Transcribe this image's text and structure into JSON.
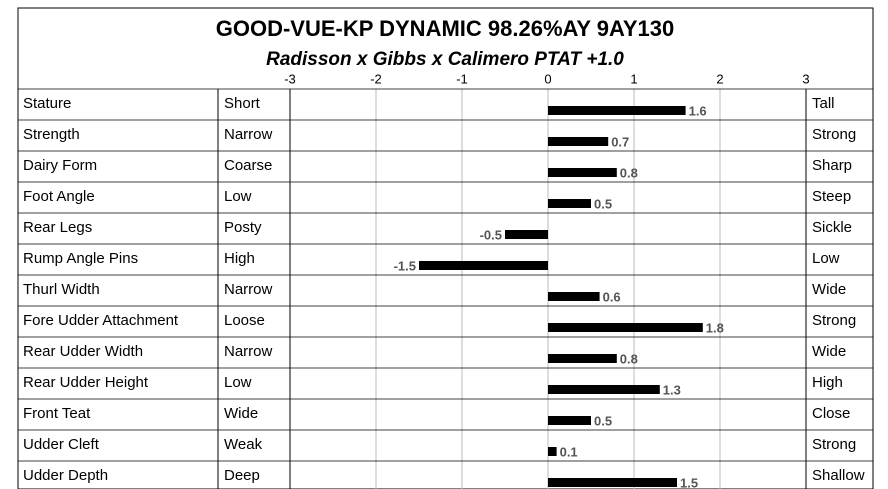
{
  "chart_data": {
    "type": "bar",
    "orientation": "horizontal",
    "title": "GOOD-VUE-KP DYNAMIC  98.26%AY   9AY130",
    "subtitle": "Radisson x Gibbs x Calimero    PTAT +1.0",
    "categories": [
      "Stature",
      "Strength",
      "Dairy Form",
      "Foot Angle",
      "Rear Legs",
      "Rump Angle Pins",
      "Thurl Width",
      "Fore Udder Attachment",
      "Rear Udder Width",
      "Rear Udder Height",
      "Front Teat",
      "Udder Cleft",
      "Udder Depth"
    ],
    "low_labels": [
      "Short",
      "Narrow",
      "Coarse",
      "Low",
      "Posty",
      "High",
      "Narrow",
      "Loose",
      "Narrow",
      "Low",
      "Wide",
      "Weak",
      "Deep"
    ],
    "high_labels": [
      "Tall",
      "Strong",
      "Sharp",
      "Steep",
      "Sickle",
      "Low",
      "Wide",
      "Strong",
      "Wide",
      "High",
      "Close",
      "Strong",
      "Shallow"
    ],
    "values": [
      1.6,
      0.7,
      0.8,
      0.5,
      -0.5,
      -1.5,
      0.6,
      1.8,
      0.8,
      1.3,
      0.5,
      0.1,
      1.5
    ],
    "color": "#000000",
    "xlim": [
      -3,
      3
    ],
    "xticks": [
      -3,
      -2,
      -1,
      0,
      1,
      2,
      3
    ],
    "grid": true
  }
}
